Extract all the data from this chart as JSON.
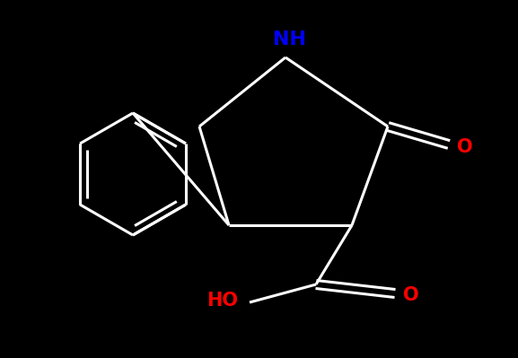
{
  "bg_color": "#000000",
  "bond_color": "#ffffff",
  "bond_width": 2.2,
  "atom_colors": {
    "O": "#ff0000",
    "N": "#0000ff",
    "C": "#ffffff",
    "H": "#ffffff"
  },
  "font_size": 15,
  "fig_width": 5.77,
  "fig_height": 3.99,
  "dpi": 100
}
